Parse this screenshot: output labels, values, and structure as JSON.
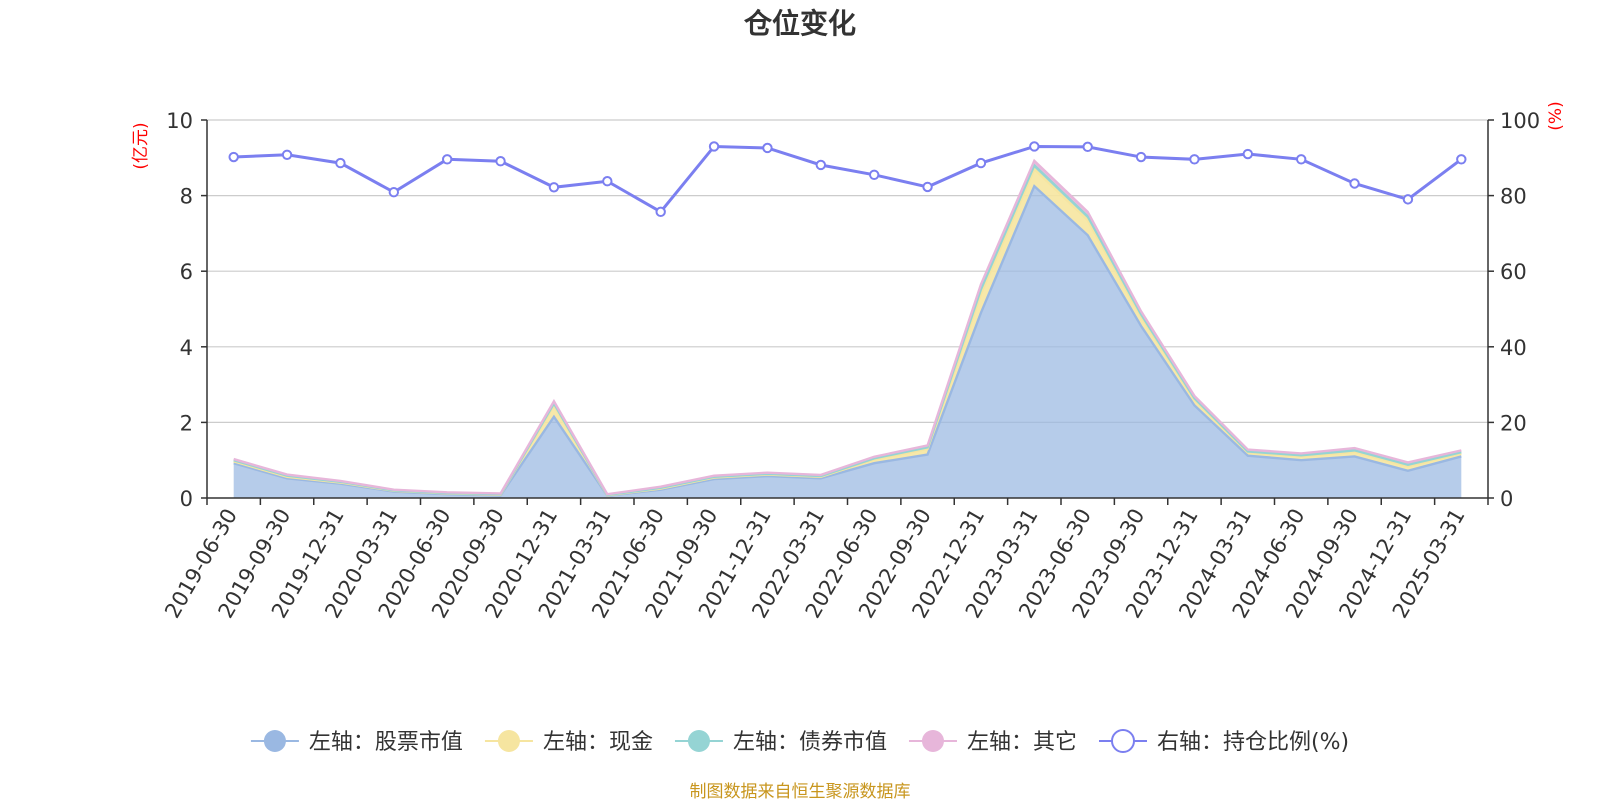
{
  "chart_data": {
    "type": "area",
    "title": "仓位变化",
    "left_axis_unit": "(亿元)",
    "right_axis_unit": "(%)",
    "categories": [
      "2019-06-30",
      "2019-09-30",
      "2019-12-31",
      "2020-03-31",
      "2020-06-30",
      "2020-09-30",
      "2020-12-31",
      "2021-03-31",
      "2021-06-30",
      "2021-09-30",
      "2021-12-31",
      "2022-03-31",
      "2022-06-30",
      "2022-09-30",
      "2022-12-31",
      "2023-03-31",
      "2023-06-30",
      "2023-09-30",
      "2023-12-31",
      "2024-03-31",
      "2024-06-30",
      "2024-09-30",
      "2024-12-31",
      "2025-03-31"
    ],
    "ylim_left": [
      0,
      10
    ],
    "yticks_left": [
      "0",
      "2",
      "4",
      "6",
      "8",
      "10"
    ],
    "ylim_right": [
      0,
      100
    ],
    "yticks_right": [
      "0",
      "20",
      "40",
      "60",
      "80",
      "100"
    ],
    "stack_series": [
      {
        "name": "左轴：股票市值",
        "color": "#9ab8e2",
        "values": [
          0.92,
          0.52,
          0.38,
          0.17,
          0.1,
          0.07,
          2.15,
          0.06,
          0.22,
          0.5,
          0.58,
          0.52,
          0.92,
          1.15,
          4.9,
          8.25,
          6.95,
          4.55,
          2.45,
          1.12,
          1.0,
          1.1,
          0.72,
          1.1
        ]
      },
      {
        "name": "左轴：现金",
        "color": "#f6e5a0",
        "values": [
          0.05,
          0.04,
          0.03,
          0.02,
          0.02,
          0.02,
          0.3,
          0.01,
          0.03,
          0.04,
          0.04,
          0.04,
          0.1,
          0.15,
          0.5,
          0.45,
          0.4,
          0.25,
          0.15,
          0.08,
          0.1,
          0.12,
          0.12,
          0.08
        ]
      },
      {
        "name": "左轴：债券市值",
        "color": "#95d4d4",
        "values": [
          0.03,
          0.03,
          0.02,
          0.01,
          0.01,
          0.01,
          0.05,
          0.01,
          0.02,
          0.02,
          0.02,
          0.02,
          0.03,
          0.04,
          0.12,
          0.1,
          0.1,
          0.06,
          0.04,
          0.03,
          0.03,
          0.04,
          0.04,
          0.03
        ]
      },
      {
        "name": "左轴：其它",
        "color": "#e7b6da",
        "values": [
          0.03,
          0.03,
          0.02,
          0.02,
          0.02,
          0.02,
          0.06,
          0.02,
          0.03,
          0.03,
          0.03,
          0.03,
          0.04,
          0.05,
          0.13,
          0.12,
          0.12,
          0.08,
          0.06,
          0.05,
          0.05,
          0.06,
          0.06,
          0.05
        ]
      }
    ],
    "line_series": {
      "name": "右轴：持仓比例(%)",
      "color": "#7b7ff0",
      "values": [
        90.2,
        90.8,
        88.6,
        80.9,
        89.6,
        89.1,
        82.2,
        83.8,
        75.7,
        93.0,
        92.6,
        88.1,
        85.5,
        82.3,
        88.6,
        93.0,
        92.9,
        90.2,
        89.6,
        91.0,
        89.6,
        83.2,
        79.0,
        89.6
      ]
    },
    "legend_position": "bottom",
    "grid": true
  },
  "legend": [
    {
      "label": "左轴：股票市值",
      "color": "#9ab8e2",
      "hollow": false
    },
    {
      "label": "左轴：现金",
      "color": "#f6e5a0",
      "hollow": false
    },
    {
      "label": "左轴：债券市值",
      "color": "#95d4d4",
      "hollow": false
    },
    {
      "label": "左轴：其它",
      "color": "#e7b6da",
      "hollow": false
    },
    {
      "label": "右轴：持仓比例(%)",
      "color": "#7b7ff0",
      "hollow": true
    }
  ],
  "source_text": "制图数据来自恒生聚源数据库"
}
